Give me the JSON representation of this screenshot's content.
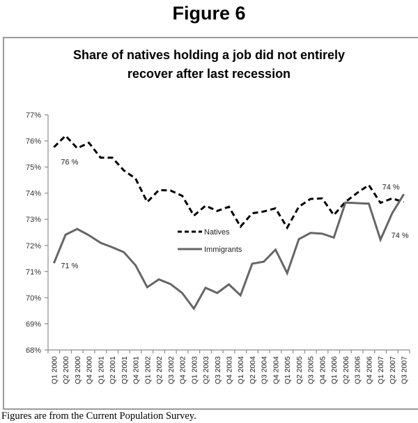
{
  "figure_title": "Figure 6",
  "footer": "Figures are from the Current Population Survey.",
  "chart_data": {
    "type": "line",
    "title": [
      "Share of natives holding a job did not entirely",
      "recover after last recession"
    ],
    "xlabel": "",
    "ylabel": "",
    "ylim": [
      68,
      77
    ],
    "yticks": [
      68,
      69,
      70,
      71,
      72,
      73,
      74,
      75,
      76,
      77
    ],
    "ytick_suffix": "%",
    "grid": false,
    "legend": {
      "placement": "center",
      "entries": [
        "Natives",
        "Immigrants"
      ]
    },
    "categories": [
      "Q1 2000",
      "Q2 2000",
      "Q3 2000",
      "Q4 2000",
      "Q1 2001",
      "Q2 2001",
      "Q3 2001",
      "Q4 2001",
      "Q1 2002",
      "Q2 2002",
      "Q3 2002",
      "Q4 2002",
      "Q1 2003",
      "Q2 2003",
      "Q3 2003",
      "Q4 2003",
      "Q1 2004",
      "Q2 2004",
      "Q3 2004",
      "Q4 2004",
      "Q1 2005",
      "Q2 2005",
      "Q3 2005",
      "Q4 2005",
      "Q1 2006",
      "Q2 2006",
      "Q3 2006",
      "Q4 2006",
      "Q1 2007",
      "Q2 2007",
      "Q3 2007"
    ],
    "series": [
      {
        "name": "Natives",
        "style": "dashed",
        "color": "#000000",
        "values": [
          75.76,
          76.2,
          75.72,
          75.93,
          75.36,
          75.36,
          74.87,
          74.56,
          73.66,
          74.12,
          74.1,
          73.9,
          73.14,
          73.52,
          73.32,
          73.48,
          72.72,
          73.23,
          73.3,
          73.42,
          72.68,
          73.48,
          73.78,
          73.8,
          73.16,
          73.67,
          74.01,
          74.31,
          73.63,
          73.8,
          73.66
        ]
      },
      {
        "name": "Immigrants",
        "style": "solid",
        "color": "#666666",
        "values": [
          71.32,
          72.41,
          72.63,
          72.39,
          72.1,
          71.93,
          71.74,
          71.24,
          70.4,
          70.7,
          70.52,
          70.18,
          69.58,
          70.38,
          70.18,
          70.51,
          70.09,
          71.3,
          71.38,
          71.84,
          70.94,
          72.24,
          72.48,
          72.45,
          72.3,
          73.64,
          73.62,
          73.6,
          72.22,
          73.23,
          73.96
        ]
      }
    ],
    "annotations": [
      {
        "series": "Natives",
        "category": "Q1 2000",
        "text": "76 %"
      },
      {
        "series": "Immigrants",
        "category": "Q1 2000",
        "text": "71 %"
      },
      {
        "series": "Natives",
        "category": "Q3 2007",
        "text": "74 %"
      },
      {
        "series": "Immigrants",
        "category": "Q3 2007",
        "text": "74 %"
      }
    ]
  }
}
